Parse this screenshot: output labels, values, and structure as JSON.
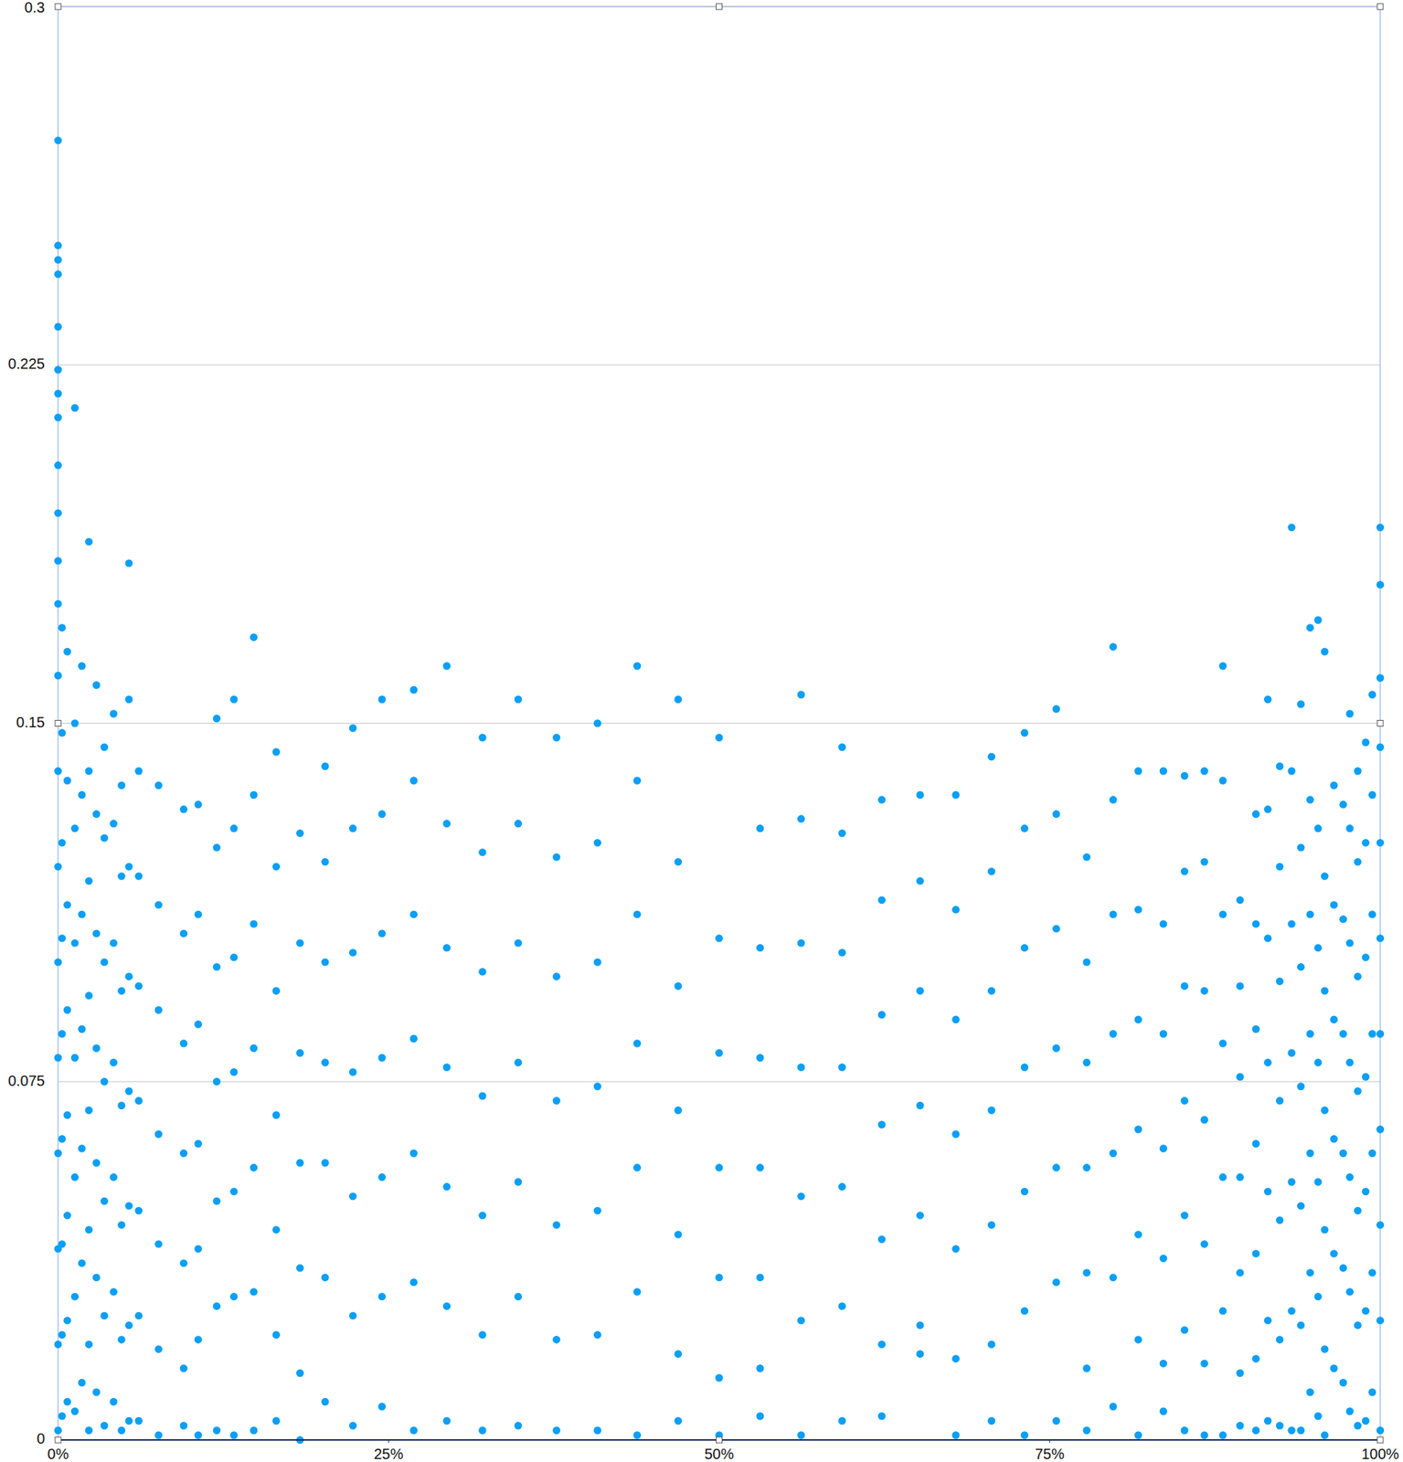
{
  "chart_data": {
    "type": "scatter",
    "color": "#0a9ff5",
    "marker": "circle",
    "grid": true,
    "xlim": [
      0,
      100
    ],
    "ylim": [
      0,
      0.3
    ],
    "xticks": [
      {
        "value": 0,
        "label": "0%"
      },
      {
        "value": 25,
        "label": "25%"
      },
      {
        "value": 50,
        "label": "50%"
      },
      {
        "value": 75,
        "label": "75%"
      },
      {
        "value": 100,
        "label": "100%"
      }
    ],
    "yticks": [
      0,
      0.075,
      0.15,
      0.225,
      0.3
    ],
    "x": [
      0,
      0,
      0,
      0,
      0,
      0,
      0,
      0,
      0,
      0,
      0,
      0,
      0,
      0,
      0,
      0,
      0,
      0,
      0,
      0,
      0,
      0.3,
      0.3,
      0.3,
      0.3,
      0.3,
      0.3,
      0.3,
      0.3,
      0.3,
      0.7,
      0.7,
      0.7,
      0.7,
      0.7,
      0.7,
      0.7,
      0.7,
      1.27,
      1.27,
      1.27,
      1.27,
      1.27,
      1.27,
      1.27,
      1.27,
      1.8,
      1.8,
      1.8,
      1.8,
      1.8,
      1.8,
      1.8,
      2.33,
      2.33,
      2.33,
      2.33,
      2.33,
      2.33,
      2.33,
      2.33,
      2.9,
      2.9,
      2.9,
      2.9,
      2.9,
      2.9,
      2.9,
      3.5,
      3.5,
      3.5,
      3.5,
      3.5,
      3.5,
      3.5,
      4.2,
      4.2,
      4.2,
      4.2,
      4.2,
      4.2,
      4.2,
      4.8,
      4.8,
      4.8,
      4.8,
      4.8,
      4.8,
      4.8,
      5.36,
      5.36,
      5.36,
      5.36,
      5.36,
      5.36,
      5.36,
      5.36,
      6.1,
      6.1,
      6.1,
      6.1,
      6.1,
      6.1,
      6.1,
      7.6,
      7.6,
      7.6,
      7.6,
      7.6,
      7.6,
      7.6,
      9.5,
      9.5,
      9.5,
      9.5,
      9.5,
      9.5,
      9.5,
      10.6,
      10.6,
      10.6,
      10.6,
      10.6,
      10.6,
      10.6,
      12.0,
      12.0,
      12.0,
      12.0,
      12.0,
      12.0,
      12.0,
      13.3,
      13.3,
      13.3,
      13.3,
      13.3,
      13.3,
      13.3,
      14.8,
      14.8,
      14.8,
      14.8,
      14.8,
      14.8,
      14.8,
      16.5,
      16.5,
      16.5,
      16.5,
      16.5,
      16.5,
      16.5,
      18.3,
      18.3,
      18.3,
      18.3,
      18.3,
      18.3,
      18.3,
      20.2,
      20.2,
      20.2,
      20.2,
      20.2,
      20.2,
      20.2,
      22.3,
      22.3,
      22.3,
      22.3,
      22.3,
      22.3,
      22.3,
      24.5,
      24.5,
      24.5,
      24.5,
      24.5,
      24.5,
      24.5,
      26.9,
      26.9,
      26.9,
      26.9,
      26.9,
      26.9,
      26.9,
      29.4,
      29.4,
      29.4,
      29.4,
      29.4,
      29.4,
      29.4,
      32.1,
      32.1,
      32.1,
      32.1,
      32.1,
      32.1,
      32.1,
      34.8,
      34.8,
      34.8,
      34.8,
      34.8,
      34.8,
      34.8,
      37.7,
      37.7,
      37.7,
      37.7,
      37.7,
      37.7,
      37.7,
      40.8,
      40.8,
      40.8,
      40.8,
      40.8,
      40.8,
      40.8,
      43.8,
      43.8,
      43.8,
      43.8,
      43.8,
      43.8,
      43.8,
      46.9,
      46.9,
      46.9,
      46.9,
      46.9,
      46.9,
      46.9,
      50.0,
      50.0,
      50.0,
      50.0,
      50.0,
      50.0,
      50.0,
      53.1,
      53.1,
      53.1,
      53.1,
      53.1,
      53.1,
      53.1,
      56.2,
      56.2,
      56.2,
      56.2,
      56.2,
      56.2,
      56.2,
      59.3,
      59.3,
      59.3,
      59.3,
      59.3,
      59.3,
      59.3,
      62.3,
      62.3,
      62.3,
      62.3,
      62.3,
      62.3,
      62.3,
      65.2,
      65.2,
      65.2,
      65.2,
      65.2,
      65.2,
      65.2,
      67.9,
      67.9,
      67.9,
      67.9,
      67.9,
      67.9,
      67.9,
      70.6,
      70.6,
      70.6,
      70.6,
      70.6,
      70.6,
      70.6,
      73.1,
      73.1,
      73.1,
      73.1,
      73.1,
      73.1,
      73.1,
      75.5,
      75.5,
      75.5,
      75.5,
      75.5,
      75.5,
      75.5,
      77.8,
      77.8,
      77.8,
      77.8,
      77.8,
      77.8,
      77.8,
      79.8,
      79.8,
      79.8,
      79.8,
      79.8,
      79.8,
      79.8,
      81.7,
      81.7,
      81.7,
      81.7,
      81.7,
      81.7,
      81.7,
      83.6,
      83.6,
      83.6,
      83.6,
      83.6,
      83.6,
      83.6,
      85.2,
      85.2,
      85.2,
      85.2,
      85.2,
      85.2,
      85.2,
      86.7,
      86.7,
      86.7,
      86.7,
      86.7,
      86.7,
      86.7,
      88.1,
      88.1,
      88.1,
      88.1,
      88.1,
      88.1,
      88.1,
      89.4,
      89.4,
      89.4,
      89.4,
      89.4,
      89.4,
      89.4,
      90.6,
      90.6,
      90.6,
      90.6,
      90.6,
      90.6,
      90.6,
      91.5,
      91.5,
      91.5,
      91.5,
      91.5,
      91.5,
      91.5,
      92.4,
      92.4,
      92.4,
      92.4,
      92.4,
      92.4,
      92.4,
      93.3,
      93.3,
      93.3,
      93.3,
      93.3,
      93.3,
      93.3,
      94.0,
      94.0,
      94.0,
      94.0,
      94.0,
      94.0,
      94.0,
      94.7,
      94.7,
      94.7,
      94.7,
      94.7,
      94.7,
      94.7,
      95.3,
      95.3,
      95.3,
      95.3,
      95.3,
      95.3,
      95.3,
      95.8,
      95.8,
      95.8,
      95.8,
      95.8,
      95.8,
      95.8,
      96.5,
      96.5,
      96.5,
      96.5,
      96.5,
      96.5,
      97.2,
      97.2,
      97.2,
      97.2,
      97.2,
      97.2,
      97.7,
      97.7,
      97.7,
      97.7,
      97.7,
      97.7,
      97.7,
      98.3,
      98.3,
      98.3,
      98.3,
      98.3,
      98.3,
      98.3,
      98.9,
      98.9,
      98.9,
      98.9,
      98.9,
      98.9,
      98.9,
      99.4,
      99.4,
      99.4,
      99.4,
      99.4,
      99.4,
      99.4,
      100,
      100,
      100,
      100,
      100,
      100,
      100,
      100,
      100,
      100,
      100
    ],
    "values": [
      0.272,
      0.25,
      0.247,
      0.244,
      0.233,
      0.224,
      0.219,
      0.214,
      0.204,
      0.194,
      0.184,
      0.175,
      0.16,
      0.14,
      0.12,
      0.1,
      0.08,
      0.06,
      0.04,
      0.02,
      0.002,
      0.17,
      0.148,
      0.125,
      0.105,
      0.085,
      0.063,
      0.041,
      0.022,
      0.005,
      0.165,
      0.138,
      0.112,
      0.09,
      0.068,
      0.047,
      0.025,
      0.008,
      0.216,
      0.15,
      0.128,
      0.104,
      0.08,
      0.055,
      0.03,
      0.006,
      0.162,
      0.135,
      0.11,
      0.086,
      0.061,
      0.037,
      0.012,
      0.188,
      0.14,
      0.117,
      0.093,
      0.069,
      0.044,
      0.02,
      0.002,
      0.158,
      0.131,
      0.106,
      0.082,
      0.058,
      0.034,
      0.01,
      0.145,
      0.126,
      0.1,
      0.075,
      0.05,
      0.026,
      0.003,
      0.152,
      0.129,
      0.104,
      0.079,
      0.055,
      0.031,
      0.008,
      0.137,
      0.118,
      0.094,
      0.07,
      0.045,
      0.021,
      0.002,
      0.1835,
      0.155,
      0.12,
      0.097,
      0.073,
      0.049,
      0.024,
      0.004,
      0.14,
      0.118,
      0.095,
      0.071,
      0.048,
      0.026,
      0.004,
      0.137,
      0.112,
      0.09,
      0.064,
      0.041,
      0.019,
      0.001,
      0.132,
      0.106,
      0.083,
      0.06,
      0.037,
      0.015,
      0.003,
      0.133,
      0.11,
      0.087,
      0.062,
      0.04,
      0.021,
      0.001,
      0.151,
      0.124,
      0.099,
      0.075,
      0.05,
      0.028,
      0.002,
      0.155,
      0.128,
      0.101,
      0.077,
      0.052,
      0.03,
      0.001,
      0.168,
      0.135,
      0.108,
      0.082,
      0.057,
      0.031,
      0.002,
      0.144,
      0.12,
      0.094,
      0.068,
      0.044,
      0.022,
      0.004,
      0.127,
      0.104,
      0.081,
      0.058,
      0.036,
      0.014,
      0.0,
      0.141,
      0.121,
      0.1,
      0.079,
      0.058,
      0.034,
      0.008,
      0.149,
      0.128,
      0.102,
      0.077,
      0.051,
      0.026,
      0.003,
      0.155,
      0.131,
      0.106,
      0.08,
      0.055,
      0.03,
      0.007,
      0.157,
      0.138,
      0.11,
      0.084,
      0.06,
      0.033,
      0.002,
      0.162,
      0.129,
      0.103,
      0.078,
      0.053,
      0.028,
      0.004,
      0.147,
      0.123,
      0.098,
      0.072,
      0.047,
      0.022,
      0.002,
      0.155,
      0.129,
      0.104,
      0.079,
      0.054,
      0.03,
      0.003,
      0.147,
      0.122,
      0.097,
      0.071,
      0.045,
      0.021,
      0.002,
      0.15,
      0.125,
      0.1,
      0.074,
      0.048,
      0.022,
      0.002,
      0.162,
      0.138,
      0.11,
      0.083,
      0.057,
      0.031,
      0.001,
      0.155,
      0.121,
      0.095,
      0.069,
      0.043,
      0.018,
      0.004,
      0.147,
      0.105,
      0.081,
      0.057,
      0.034,
      0.013,
      0.001,
      0.128,
      0.103,
      0.08,
      0.057,
      0.034,
      0.015,
      0.005,
      0.156,
      0.13,
      0.104,
      0.078,
      0.051,
      0.025,
      0.001,
      0.145,
      0.127,
      0.102,
      0.078,
      0.053,
      0.028,
      0.004,
      0.134,
      0.113,
      0.089,
      0.066,
      0.042,
      0.02,
      0.005,
      0.135,
      0.117,
      0.094,
      0.07,
      0.047,
      0.024,
      0.018,
      0.135,
      0.111,
      0.088,
      0.064,
      0.04,
      0.017,
      0.001,
      0.143,
      0.119,
      0.094,
      0.069,
      0.045,
      0.02,
      0.004,
      0.148,
      0.128,
      0.103,
      0.078,
      0.052,
      0.027,
      0.001,
      0.153,
      0.131,
      0.107,
      0.082,
      0.057,
      0.033,
      0.004,
      0.122,
      0.1,
      0.079,
      0.057,
      0.035,
      0.015,
      0.002,
      0.166,
      0.134,
      0.11,
      0.085,
      0.06,
      0.034,
      0.007,
      0.14,
      0.111,
      0.088,
      0.065,
      0.043,
      0.021,
      0.001,
      0.14,
      0.108,
      0.085,
      0.061,
      0.038,
      0.016,
      0.006,
      0.139,
      0.119,
      0.095,
      0.071,
      0.047,
      0.023,
      0.002,
      0.14,
      0.121,
      0.094,
      0.067,
      0.041,
      0.016,
      0.001,
      0.162,
      0.138,
      0.11,
      0.083,
      0.055,
      0.027,
      0.001,
      0.113,
      0.095,
      0.076,
      0.055,
      0.035,
      0.014,
      0.003,
      0.131,
      0.108,
      0.086,
      0.062,
      0.039,
      0.017,
      0.002,
      0.155,
      0.132,
      0.105,
      0.079,
      0.052,
      0.025,
      0.004,
      0.141,
      0.12,
      0.096,
      0.071,
      0.046,
      0.021,
      0.003,
      0.191,
      0.14,
      0.108,
      0.081,
      0.054,
      0.027,
      0.002,
      0.154,
      0.124,
      0.099,
      0.074,
      0.049,
      0.024,
      0.002,
      0.17,
      0.134,
      0.11,
      0.085,
      0.06,
      0.035,
      0.01,
      0.1716,
      0.128,
      0.103,
      0.079,
      0.054,
      0.03,
      0.005,
      0.165,
      0.118,
      0.094,
      0.069,
      0.044,
      0.019,
      0.001,
      0.137,
      0.112,
      0.088,
      0.063,
      0.039,
      0.015,
      0.133,
      0.109,
      0.085,
      0.06,
      0.036,
      0.012,
      0.152,
      0.128,
      0.104,
      0.079,
      0.055,
      0.031,
      0.006,
      0.14,
      0.121,
      0.097,
      0.073,
      0.048,
      0.024,
      0.003,
      0.146,
      0.125,
      0.101,
      0.076,
      0.052,
      0.027,
      0.004,
      0.156,
      0.135,
      0.11,
      0.085,
      0.06,
      0.035,
      0.01,
      0.191,
      0.179,
      0.1595,
      0.145,
      0.125,
      0.105,
      0.085,
      0.065,
      0.045,
      0.025,
      0.002
    ]
  }
}
